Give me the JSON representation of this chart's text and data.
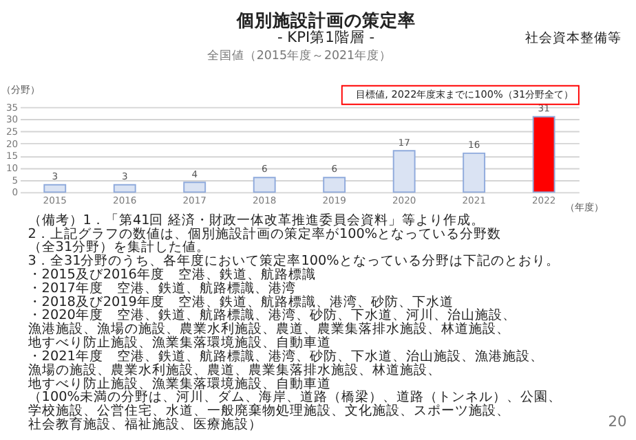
{
  "chart_data": {
    "type": "bar",
    "title": "個別施設計画の策定率",
    "subtitle": "- KPI第1階層 -",
    "xlabel": "（年度）",
    "ylabel": "（分野）",
    "categories": [
      "2015",
      "2016",
      "2017",
      "2018",
      "2019",
      "2020",
      "2021",
      "2022"
    ],
    "values": [
      3,
      3,
      4,
      6,
      6,
      17,
      16,
      31
    ],
    "colors": [
      "#dae3f3",
      "#dae3f3",
      "#dae3f3",
      "#dae3f3",
      "#dae3f3",
      "#dae3f3",
      "#dae3f3",
      "#ff0000"
    ],
    "ylim": [
      0,
      35
    ],
    "yticks": [
      0,
      5,
      10,
      15,
      20,
      25,
      30,
      35
    ],
    "grid": "y",
    "data_labels": true,
    "annotations": [
      "社会資本整備等",
      "全国値（2015年度～2021年度）",
      "目標値, 2022年度末までに100%（31分野全て）",
      "（備考）1．「第41回 経済・財政一体改革推進委員会資料」等より作成。",
      "2．上記グラフの数値は、個別施設計画の策定率が100%となっている分野数",
      "（全31分野）を集計した値。",
      "3．全31分野のうち、各年度において策定率100%となっている分野は下記のとおり。",
      "・2015及び2016年度　空港、鉄道、航路標識",
      "・2017年度　空港、鉄道、航路標識、港湾",
      "・2018及び2019年度　空港、鉄道、航路標識、港湾、砂防、下水道",
      "・2020年度　空港、鉄道、航路標識、港湾、砂防、下水道、河川、治山施設、",
      "漁港施設、漁場の施設、農業水利施設、農道、農業集落排水施設、林道施設、",
      "地すべり防止施設、漁業集落環境施設、自動車道",
      "・2021年度　空港、鉄道、航路標識、港湾、砂防、下水道、治山施設、漁港施設、",
      "漁場の施設、農業水利施設、農道、農業集落排水施設、林道施設、",
      "地すべり防止施設、漁業集落環境施設、自動車道",
      "（100%未満の分野は、河川、ダム、海岸、道路（橋梁）、道路（トンネル）、公園、",
      "学校施設、公営住宅、水道、一般廃棄物処理施設、文化施設、スポーツ施設、",
      "社会教育施設、福祉施設、医療施設）",
      "20"
    ]
  }
}
